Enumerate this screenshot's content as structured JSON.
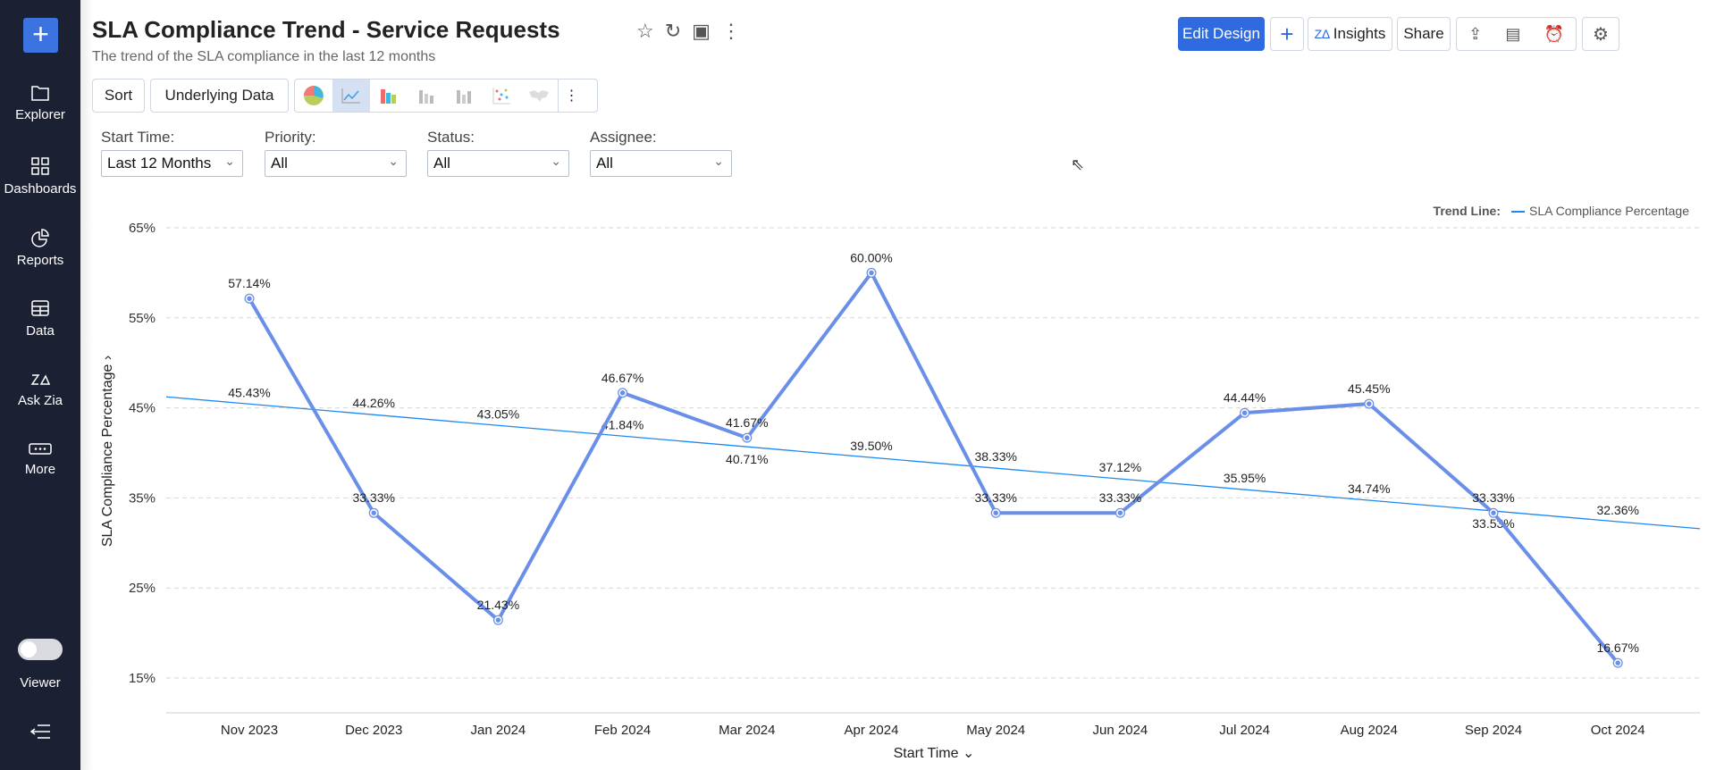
{
  "sidebar": {
    "items": [
      {
        "label": "Explorer",
        "icon": "folder-icon"
      },
      {
        "label": "Dashboards",
        "icon": "dashboards-icon"
      },
      {
        "label": "Reports",
        "icon": "reports-icon"
      },
      {
        "label": "Data",
        "icon": "table-icon"
      },
      {
        "label": "Ask Zia",
        "icon": "zia-icon"
      },
      {
        "label": "More",
        "icon": "more-icon"
      }
    ],
    "viewer_label": "Viewer",
    "viewer_on": false
  },
  "header": {
    "title": "SLA Compliance Trend - Service Requests",
    "subtitle": "The trend of the SLA compliance in the last 12 months",
    "edit_design": "Edit Design",
    "insights": "Insights",
    "share": "Share",
    "add": "+"
  },
  "toolbar": {
    "sort": "Sort",
    "underlying": "Underlying Data",
    "selected_chart": "line"
  },
  "filters": [
    {
      "label": "Start Time:",
      "value": "Last 12 Months"
    },
    {
      "label": "Priority:",
      "value": "All"
    },
    {
      "label": "Status:",
      "value": "All"
    },
    {
      "label": "Assignee:",
      "value": "All"
    }
  ],
  "colors": {
    "accent": "#2f6ae0",
    "series": "#6a8fe8",
    "trend": "#1e88f0",
    "sidebar": "#1c2033"
  },
  "chart_data": {
    "type": "line",
    "xlabel": "Start Time",
    "ylabel": "SLA Compliance Percentage",
    "ylim": [
      15,
      65
    ],
    "yticks": [
      "65%",
      "55%",
      "45%",
      "35%",
      "25%",
      "15%"
    ],
    "ytick_values": [
      65,
      55,
      45,
      35,
      25,
      15
    ],
    "grid": true,
    "legend": {
      "title": "Trend Line:",
      "entry": "SLA Compliance Percentage",
      "placement": "top-right"
    },
    "categories": [
      "Nov 2023",
      "Dec 2023",
      "Jan 2024",
      "Feb 2024",
      "Mar 2024",
      "Apr 2024",
      "May 2024",
      "Jun 2024",
      "Jul 2024",
      "Aug 2024",
      "Sep 2024",
      "Oct 2024"
    ],
    "series": [
      {
        "values": [
          57.14,
          33.33,
          21.43,
          46.67,
          41.67,
          60.0,
          33.33,
          33.33,
          44.44,
          45.45,
          33.33,
          16.67
        ],
        "labels": [
          "57.14%",
          "33.33%",
          "21.43%",
          "46.67%",
          "41.67%",
          "60.00%",
          "33.33%",
          "33.33%",
          "44.44%",
          "45.45%",
          "33.33%",
          "16.67%"
        ]
      }
    ],
    "trend": {
      "values": [
        45.43,
        44.26,
        43.05,
        41.84,
        40.71,
        39.5,
        38.33,
        37.12,
        35.95,
        34.74,
        33.53,
        32.36
      ],
      "labels": [
        "45.43%",
        "44.26%",
        "43.05%",
        "41.84%",
        "40.71%",
        "39.50%",
        "38.33%",
        "37.12%",
        "35.95%",
        "34.74%",
        "33.53%",
        "32.36%"
      ]
    }
  }
}
